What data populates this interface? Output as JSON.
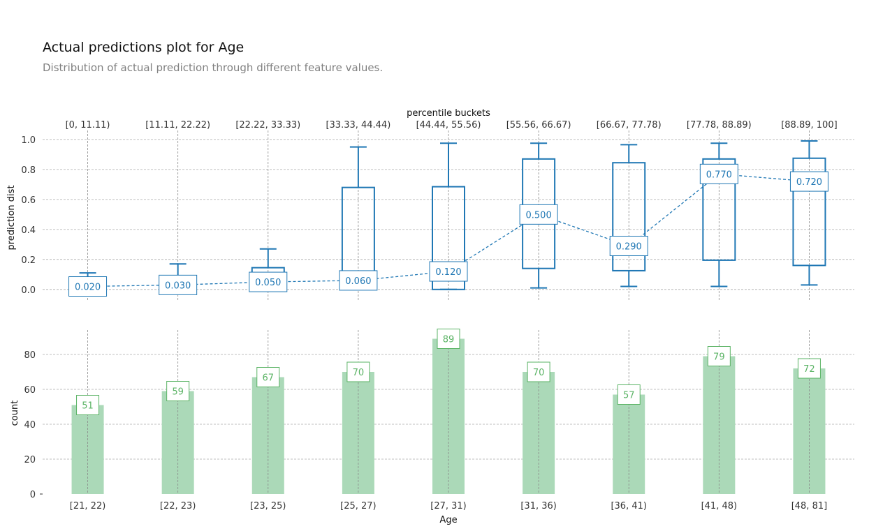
{
  "title": "Actual predictions plot for Age",
  "subtitle": "Distribution of actual prediction through different feature values.",
  "colors": {
    "box": "#1f77b4",
    "bar": "#abd9b8",
    "bar_label": "#5ab364",
    "grid": "#aaaaaa",
    "text": "#333333"
  },
  "chart_data": [
    {
      "type": "box",
      "top_axis_title": "percentile buckets",
      "top_tick_labels": [
        "[0, 11.11)",
        "[11.11, 22.22)",
        "[22.22, 33.33)",
        "[33.33, 44.44)",
        "[44.44, 55.56)",
        "[55.56, 66.67)",
        "[66.67, 77.78)",
        "[77.78, 88.89)",
        "[88.89, 100]"
      ],
      "ylabel": "prediction dist",
      "ylim": [
        -0.08,
        1.06
      ],
      "yticks": [
        0.0,
        0.2,
        0.4,
        0.6,
        0.8,
        1.0
      ],
      "ytick_labels": [
        "0.0",
        "0.2",
        "0.4",
        "0.6",
        "0.8",
        "1.0"
      ],
      "boxes": [
        {
          "whislo": 0.0,
          "q1": 0.0,
          "q3": 0.05,
          "whishi": 0.11
        },
        {
          "whislo": 0.0,
          "q1": 0.0,
          "q3": 0.08,
          "whishi": 0.17
        },
        {
          "whislo": 0.0,
          "q1": 0.0,
          "q3": 0.145,
          "whishi": 0.27
        },
        {
          "whislo": 0.0,
          "q1": 0.0,
          "q3": 0.68,
          "whishi": 0.95
        },
        {
          "whislo": 0.0,
          "q1": 0.0,
          "q3": 0.685,
          "whishi": 0.975
        },
        {
          "whislo": 0.01,
          "q1": 0.14,
          "q3": 0.87,
          "whishi": 0.975
        },
        {
          "whislo": 0.02,
          "q1": 0.125,
          "q3": 0.845,
          "whishi": 0.965
        },
        {
          "whislo": 0.02,
          "q1": 0.195,
          "q3": 0.87,
          "whishi": 0.975
        },
        {
          "whislo": 0.03,
          "q1": 0.16,
          "q3": 0.875,
          "whishi": 0.99
        }
      ],
      "medians": [
        0.02,
        0.03,
        0.05,
        0.06,
        0.12,
        0.5,
        0.29,
        0.77,
        0.72
      ],
      "median_labels": [
        "0.020",
        "0.030",
        "0.050",
        "0.060",
        "0.120",
        "0.500",
        "0.290",
        "0.770",
        "0.720"
      ]
    },
    {
      "type": "bar",
      "categories": [
        "[21, 22)",
        "[22, 23)",
        "[23, 25)",
        "[25, 27)",
        "[27, 31)",
        "[31, 36)",
        "[36, 41)",
        "[41, 48)",
        "[48, 81]"
      ],
      "values": [
        51,
        59,
        67,
        70,
        89,
        70,
        57,
        79,
        72
      ],
      "value_labels": [
        "51",
        "59",
        "67",
        "70",
        "89",
        "70",
        "57",
        "79",
        "72"
      ],
      "xlabel": "Age",
      "ylabel": "count",
      "ylim": [
        0,
        94
      ],
      "yticks": [
        0,
        20,
        40,
        60,
        80
      ],
      "ytick_labels": [
        "0",
        "20",
        "40",
        "60",
        "80"
      ]
    }
  ]
}
